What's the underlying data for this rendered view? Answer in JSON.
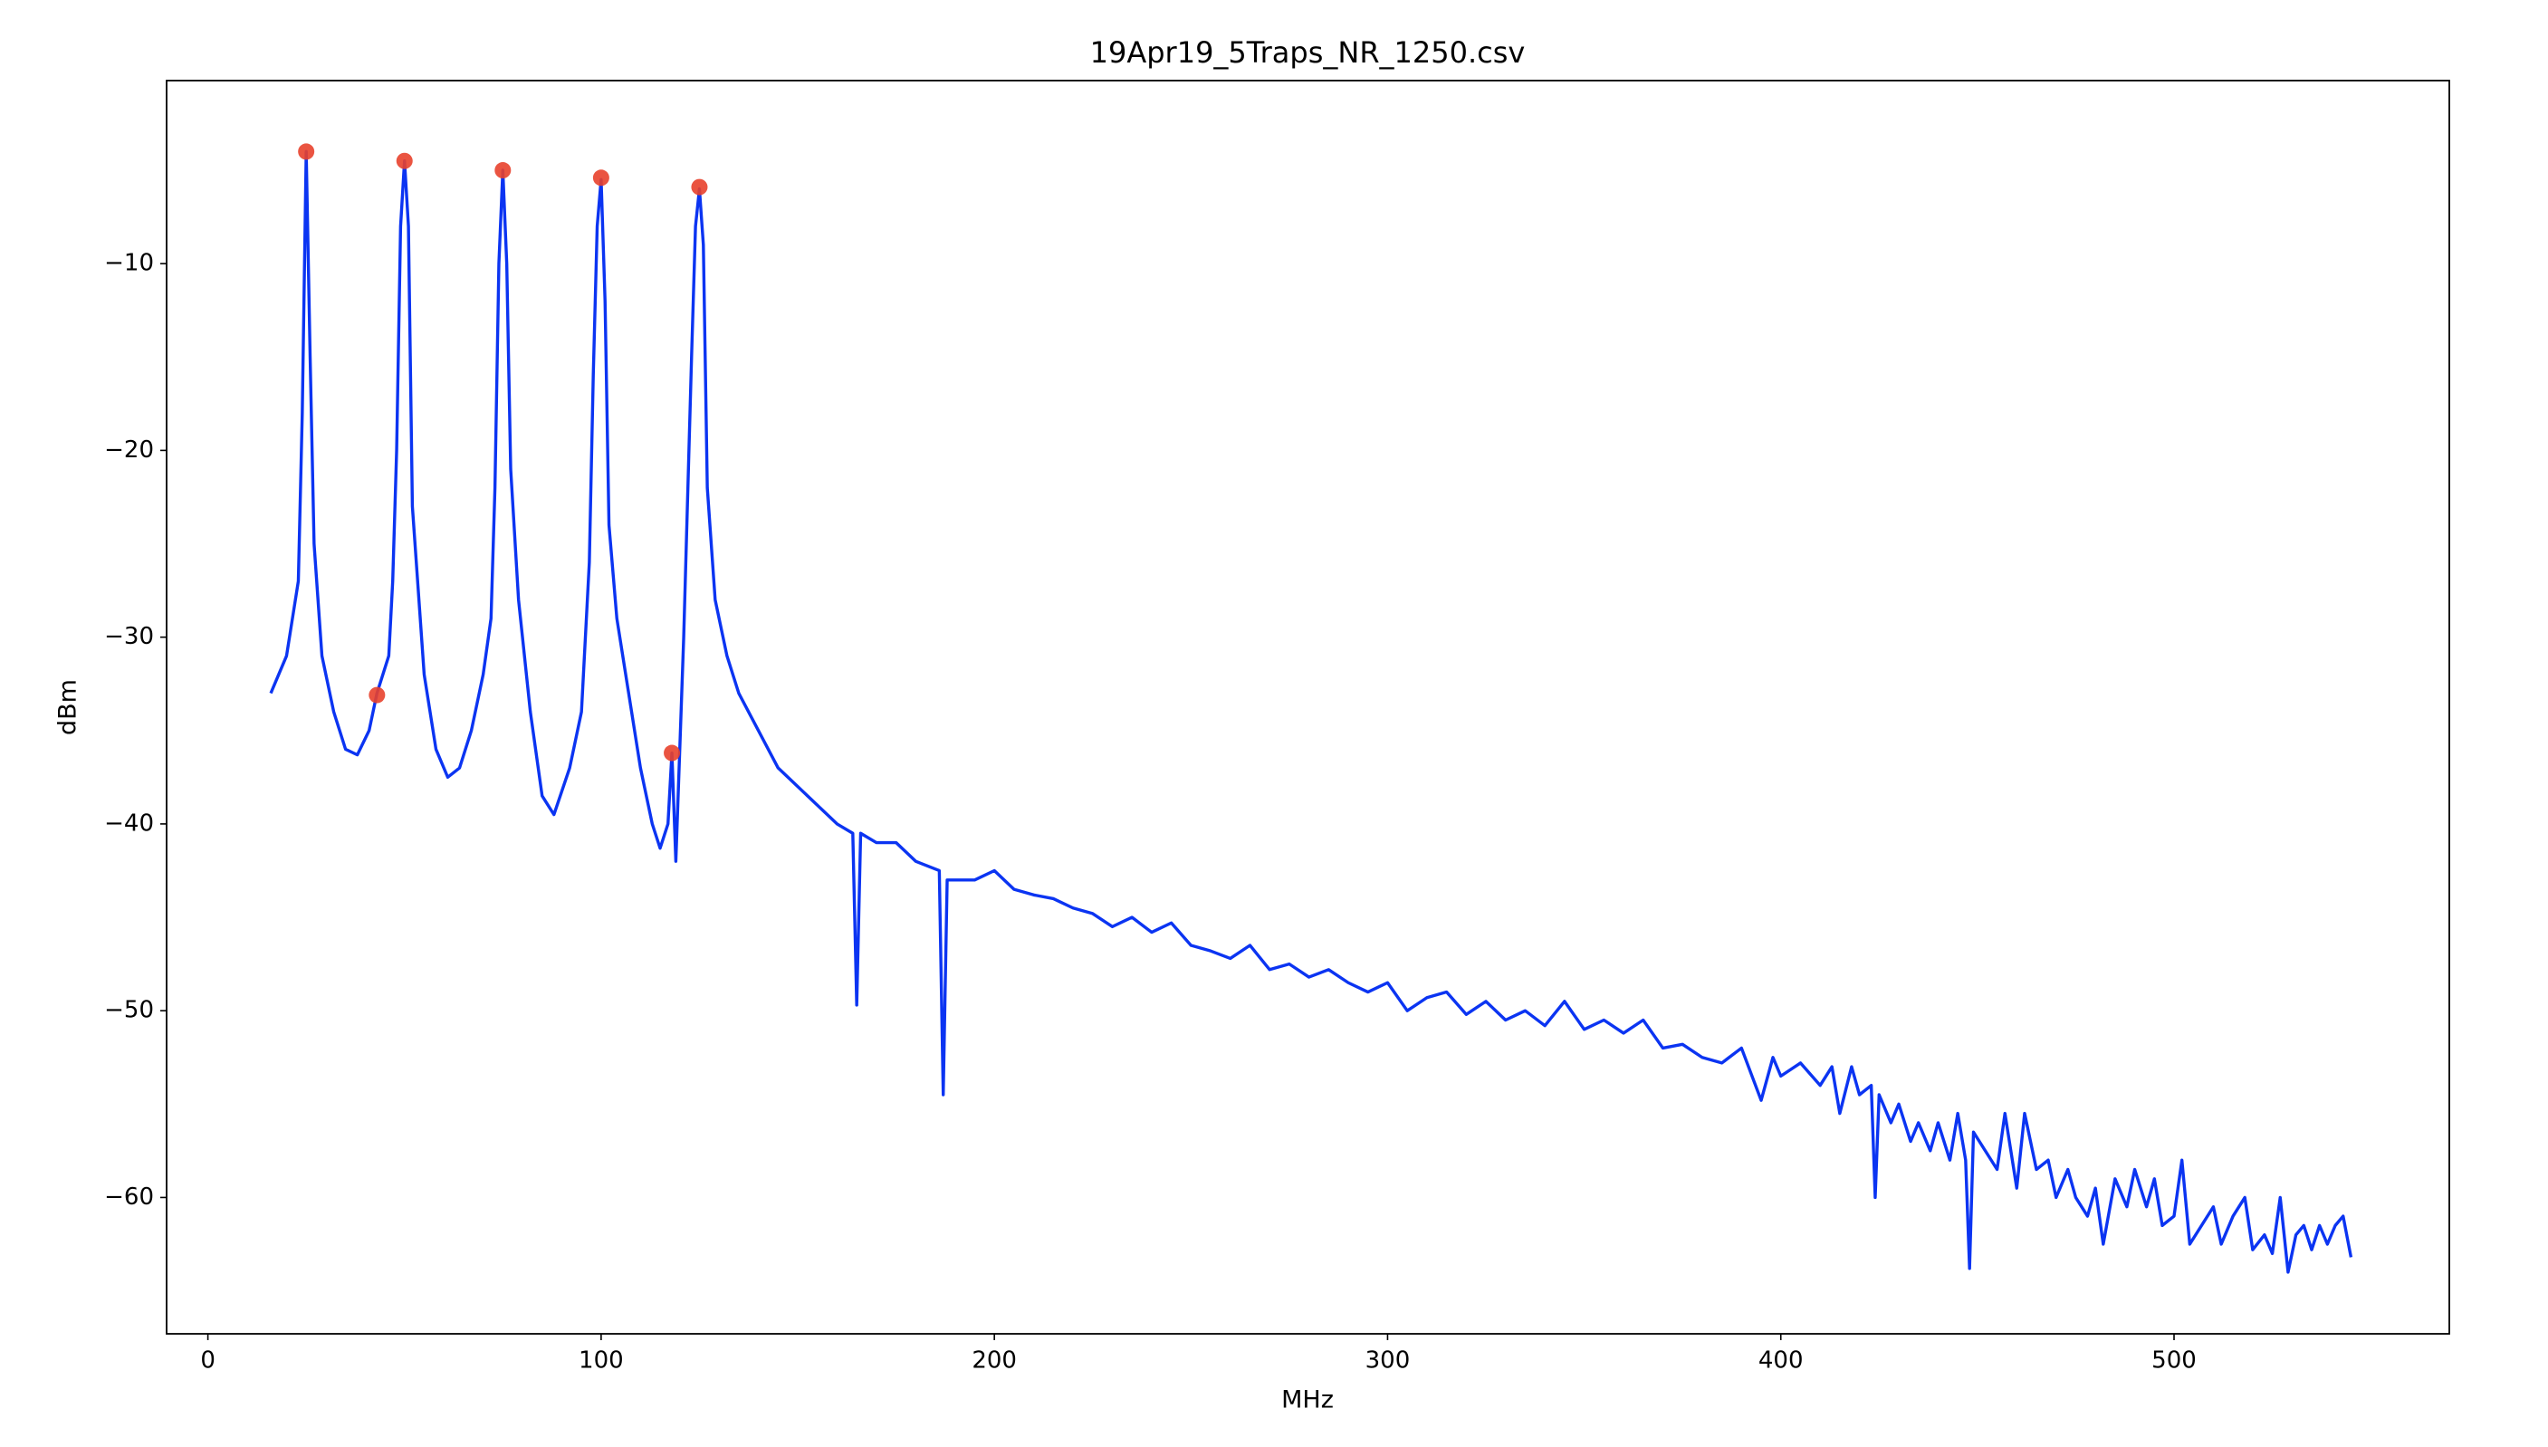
{
  "chart_data": {
    "type": "line",
    "title": "19Apr19_5Traps_NR_1250.csv",
    "xlabel": "MHz",
    "ylabel": "dBm",
    "xlim": [
      -10.5,
      570
    ],
    "ylim": [
      -67.3,
      -0.2
    ],
    "xticks": [
      0,
      100,
      200,
      300,
      400,
      500
    ],
    "yticks": [
      {
        "value": -10,
        "label": "−10"
      },
      {
        "value": -20,
        "label": "−20"
      },
      {
        "value": -30,
        "label": "−30"
      },
      {
        "value": -40,
        "label": "−40"
      },
      {
        "value": -50,
        "label": "−50"
      },
      {
        "value": -60,
        "label": "−60"
      }
    ],
    "grid": false,
    "line": {
      "color": "#0b34f2",
      "x": [
        16,
        20,
        23,
        24,
        25,
        26,
        27,
        29,
        32,
        35,
        38,
        41,
        43,
        46,
        47,
        48,
        49,
        50,
        51,
        52,
        55,
        58,
        61,
        64,
        67,
        70,
        72,
        73,
        74,
        75,
        76,
        77,
        79,
        82,
        85,
        88,
        92,
        95,
        97,
        98,
        99,
        100,
        101,
        102,
        104,
        107,
        110,
        113,
        115,
        117,
        118,
        119,
        120,
        121,
        123,
        124,
        125,
        126,
        127,
        129,
        132,
        135,
        140,
        145,
        150,
        155,
        160,
        164,
        165,
        166,
        170,
        175,
        180,
        186,
        187,
        188,
        195,
        200,
        205,
        210,
        215,
        220,
        225,
        230,
        235,
        240,
        245,
        250,
        255,
        260,
        265,
        270,
        275,
        280,
        285,
        290,
        295,
        300,
        305,
        310,
        315,
        320,
        325,
        330,
        335,
        340,
        345,
        350,
        355,
        360,
        365,
        370,
        375,
        380,
        385,
        390,
        395,
        398,
        400,
        405,
        410,
        413,
        415,
        418,
        420,
        423,
        424,
        425,
        428,
        430,
        433,
        435,
        438,
        440,
        443,
        445,
        447,
        448,
        449,
        452,
        455,
        457,
        460,
        462,
        465,
        468,
        470,
        473,
        475,
        478,
        480,
        482,
        485,
        488,
        490,
        493,
        495,
        497,
        500,
        502,
        504,
        507,
        510,
        512,
        515,
        518,
        520,
        523,
        525,
        527,
        529,
        531,
        533,
        535,
        537,
        539,
        541,
        543,
        545
      ],
      "values": [
        -33,
        -31,
        -27,
        -18,
        -4,
        -15,
        -25,
        -31,
        -34,
        -36,
        -36.3,
        -35,
        -33,
        -31,
        -27,
        -20,
        -8,
        -4.5,
        -8,
        -23,
        -32,
        -36,
        -37.5,
        -37,
        -35,
        -32,
        -29,
        -22,
        -10,
        -5,
        -10,
        -21,
        -28,
        -34,
        -38.5,
        -39.5,
        -37,
        -34,
        -26,
        -16,
        -8,
        -5.5,
        -12,
        -24,
        -29,
        -33,
        -37,
        -40,
        -41.3,
        -40,
        -36.2,
        -42,
        -36,
        -30,
        -15,
        -8,
        -6,
        -9,
        -22,
        -28,
        -31,
        -33,
        -35,
        -37,
        -38,
        -39,
        -40,
        -40.5,
        -49.7,
        -40.5,
        -41,
        -41,
        -42,
        -42.5,
        -54.5,
        -43,
        -43,
        -42.5,
        -43.5,
        -43.8,
        -44,
        -44.5,
        -44.8,
        -45.5,
        -45,
        -45.8,
        -45.3,
        -46.5,
        -46.8,
        -47.2,
        -46.5,
        -47.8,
        -47.5,
        -48.2,
        -47.8,
        -48.5,
        -49,
        -48.5,
        -50,
        -49.3,
        -49,
        -50.2,
        -49.5,
        -50.5,
        -50,
        -50.8,
        -49.5,
        -51,
        -50.5,
        -51.2,
        -50.5,
        -52,
        -51.8,
        -52.5,
        -52.8,
        -52,
        -54.8,
        -52.5,
        -53.5,
        -52.8,
        -54,
        -53,
        -55.5,
        -53,
        -54.5,
        -54,
        -60,
        -54.5,
        -56,
        -55,
        -57,
        -56,
        -57.5,
        -56,
        -58,
        -55.5,
        -58,
        -63.8,
        -56.5,
        -57.5,
        -58.5,
        -55.5,
        -59.5,
        -55.5,
        -58.5,
        -58,
        -60,
        -58.5,
        -60,
        -61,
        -59.5,
        -62.5,
        -59,
        -60.5,
        -58.5,
        -60.5,
        -59,
        -61.5,
        -61,
        -58,
        -62.5,
        -61.5,
        -60.5,
        -62.5,
        -61,
        -60,
        -62.8,
        -62,
        -63,
        -60,
        -64,
        -62,
        -61.5,
        -62.8,
        -61.5,
        -62.5,
        -61.5,
        -61,
        -63.2
      ]
    },
    "markers": {
      "color": "#e8412c",
      "x": [
        25,
        43,
        50,
        75,
        100,
        118,
        125
      ],
      "values": [
        -4,
        -33.1,
        -4.5,
        -5,
        -5.4,
        -36.2,
        -5.9
      ]
    }
  }
}
